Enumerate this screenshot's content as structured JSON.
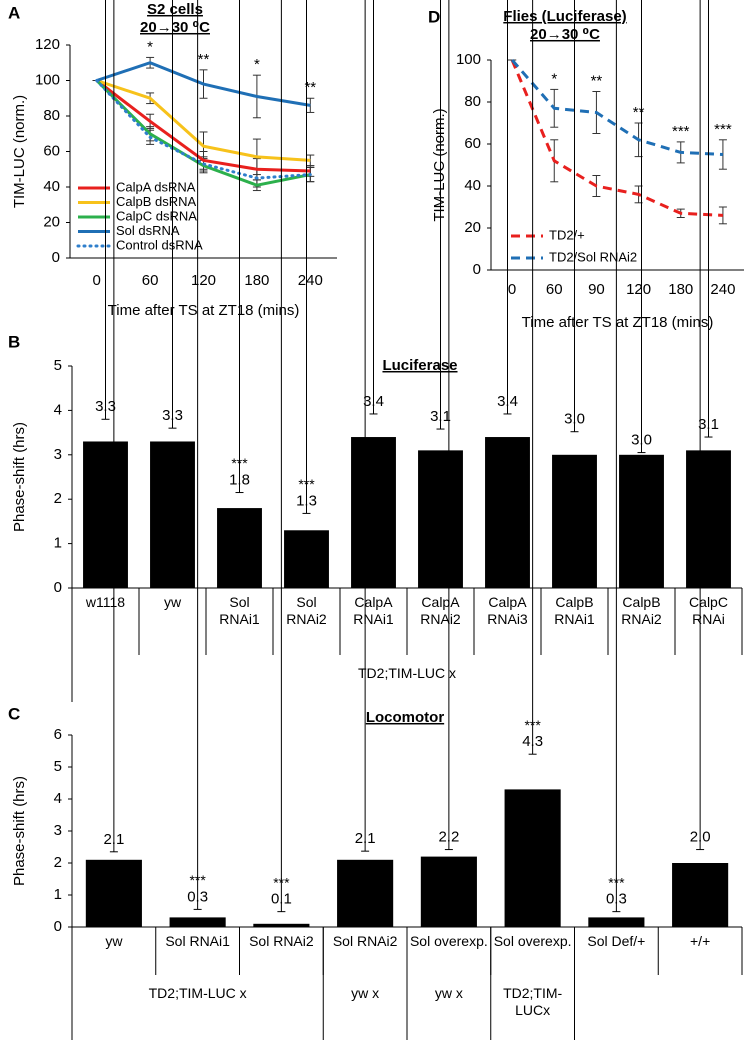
{
  "chart_data": [
    {
      "type": "line",
      "panel": "A",
      "title": "S2 cells",
      "subtitle": "20→30 ⁰C",
      "x_label": "Time after TS at ZT18 (mins)",
      "y_label": "TIM-LUC (norm.)",
      "categories": [
        "0",
        "60",
        "120",
        "180",
        "240"
      ],
      "ylim": [
        0,
        120
      ],
      "yticks": [
        0,
        20,
        40,
        60,
        80,
        100,
        120
      ],
      "grid": false,
      "legend": "lower-left",
      "series": [
        {
          "name": "CalpA dsRNA",
          "color": "#e8201e",
          "dash": "solid",
          "values": [
            100,
            77,
            55,
            50,
            49
          ],
          "errors": [
            0,
            4,
            5,
            6,
            3
          ]
        },
        {
          "name": "CalpB dsRNA",
          "color": "#f7c21b",
          "dash": "solid",
          "values": [
            100,
            90,
            63,
            57,
            55
          ],
          "errors": [
            0,
            3,
            8,
            10,
            3
          ]
        },
        {
          "name": "CalpC dsRNA",
          "color": "#2cb04c",
          "dash": "solid",
          "values": [
            100,
            70,
            52,
            41,
            47
          ],
          "errors": [
            0,
            4,
            4,
            3,
            4
          ]
        },
        {
          "name": "Sol dsRNA",
          "color": "#1f6fb5",
          "dash": "solid",
          "values": [
            100,
            110,
            98,
            91,
            86
          ],
          "errors": [
            0,
            3,
            8,
            12,
            4
          ]
        },
        {
          "name": "Control dsRNA",
          "color": "#2f7fcc",
          "dash": "dotted",
          "values": [
            100,
            68,
            53,
            45,
            47
          ],
          "errors": [
            0,
            4,
            4,
            5,
            4
          ]
        }
      ],
      "significance": [
        null,
        "*",
        "**",
        "*",
        "**"
      ]
    },
    {
      "type": "line",
      "panel": "D",
      "title": "Flies (Luciferase)",
      "subtitle": "20→30 ⁰C",
      "x_label": "Time after TS at ZT18 (mins)",
      "y_label": "TIM-LUC (norm.)",
      "categories": [
        "0",
        "60",
        "90",
        "120",
        "180",
        "240"
      ],
      "ylim": [
        0,
        100
      ],
      "yticks": [
        0,
        20,
        40,
        60,
        80,
        100
      ],
      "grid": false,
      "legend": "lower-left",
      "series": [
        {
          "name": "TD2/+",
          "color": "#e8201e",
          "dash": "dashed",
          "values": [
            100,
            52,
            40,
            36,
            27,
            26
          ],
          "errors": [
            0,
            10,
            5,
            4,
            2,
            4
          ]
        },
        {
          "name": "TD2/Sol RNAi2",
          "color": "#1f6fb5",
          "dash": "dashed",
          "values": [
            100,
            77,
            75,
            62,
            56,
            55
          ],
          "errors": [
            0,
            9,
            10,
            8,
            5,
            7
          ]
        }
      ],
      "significance": [
        null,
        "*",
        "**",
        "**",
        "***",
        "***"
      ]
    },
    {
      "type": "bar",
      "panel": "B",
      "title": "Luciferase",
      "y_label": "Phase-shift (hrs)",
      "categories": [
        "w1118",
        "yw",
        "Sol RNAi1",
        "Sol RNAi2",
        "CalpA RNAi1",
        "CalpA RNAi2",
        "CalpA RNAi3",
        "CalpB RNAi1",
        "CalpB RNAi2",
        "CalpC RNAi"
      ],
      "groups": [
        {
          "label": "TD2;TIM-LUC x",
          "count": 10
        }
      ],
      "values": [
        3.3,
        3.3,
        1.8,
        1.3,
        3.4,
        3.1,
        3.4,
        3.0,
        3.0,
        3.1
      ],
      "value_labels": [
        "3.3",
        "3.3",
        "1.8",
        "1.3",
        "3.4",
        "3.1",
        "3.4",
        "3.0",
        "3.0",
        "3.1"
      ],
      "errors": [
        0.5,
        0.3,
        0.35,
        0.38,
        0.52,
        0.48,
        0.52,
        0.52,
        0.05,
        0.3
      ],
      "significance": [
        null,
        null,
        "***",
        "***",
        null,
        null,
        null,
        null,
        null,
        null
      ],
      "color": "#000000",
      "ylim": [
        0,
        5
      ],
      "yticks": [
        0,
        1,
        2,
        3,
        4,
        5
      ],
      "grid": false
    },
    {
      "type": "bar",
      "panel": "C",
      "title": "Locomotor",
      "y_label": "Phase-shift (hrs)",
      "categories": [
        "yw",
        "Sol RNAi1",
        "Sol RNAi2",
        "Sol RNAi2",
        "Sol overexp.",
        "Sol overexp.",
        "Sol Def/+",
        "+/+"
      ],
      "groups": [
        {
          "label": "TD2;TIM-LUC x",
          "count": 3
        },
        {
          "label": "yw x",
          "count": 1
        },
        {
          "label": "yw x",
          "count": 1
        },
        {
          "label": "TD2;TIM-LUCx",
          "count": 1
        },
        {
          "label": null,
          "count": 2
        }
      ],
      "values": [
        2.1,
        0.3,
        0.1,
        2.1,
        2.2,
        4.3,
        0.3,
        2.0
      ],
      "value_labels": [
        "2.1",
        "0.3",
        "0.1",
        "2.1",
        "2.2",
        "4.3",
        "0.3",
        "2.0"
      ],
      "errors": [
        0.25,
        0.25,
        0.38,
        0.27,
        0.22,
        1.1,
        0.18,
        0.42
      ],
      "significance": [
        null,
        "***",
        "***",
        null,
        null,
        "***",
        "***",
        null
      ],
      "color": "#000000",
      "ylim": [
        0,
        6
      ],
      "yticks": [
        0,
        1,
        2,
        3,
        4,
        5,
        6
      ],
      "grid": false
    }
  ]
}
